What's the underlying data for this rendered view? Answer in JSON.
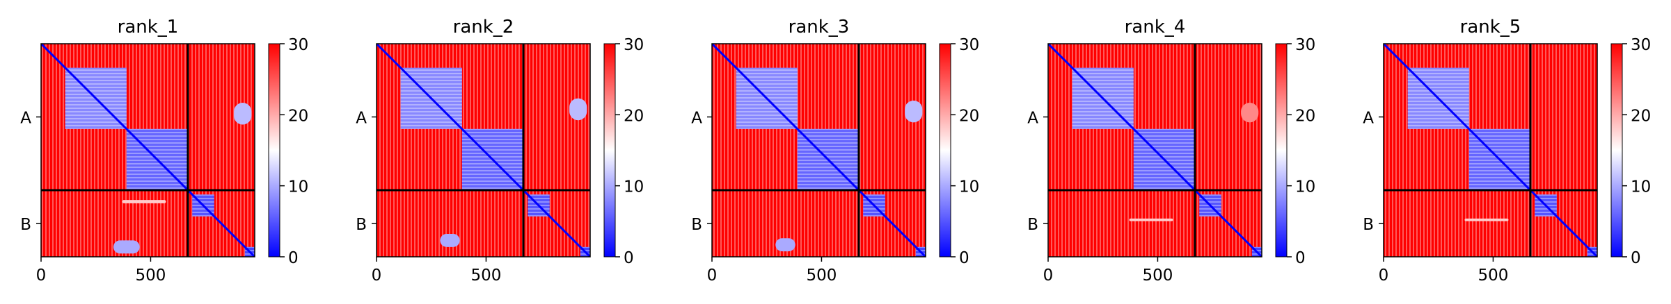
{
  "chart_data": {
    "type": "heatmap",
    "colormap": {
      "name": "bwr",
      "low": "#0000ff",
      "mid": "#ffffff",
      "high": "#ff0000"
    },
    "colorbar": {
      "range": [
        0,
        30
      ],
      "ticks": [
        "0",
        "10",
        "20",
        "30"
      ]
    },
    "x_ticks": [
      0,
      500
    ],
    "x_tick_labels": [
      "0",
      "500"
    ],
    "xlim": [
      0,
      975
    ],
    "chains": [
      {
        "label": "A",
        "start": 0,
        "end": 670
      },
      {
        "label": "B",
        "start": 670,
        "end": 975
      }
    ],
    "grid": false,
    "panels": [
      {
        "title": "rank_1",
        "domains": [
          {
            "start": 110,
            "end": 390,
            "value": 8
          },
          {
            "start": 390,
            "end": 670,
            "value": 6
          },
          {
            "start": 690,
            "end": 790,
            "value": 5
          },
          {
            "start": 930,
            "end": 975,
            "value": 4
          }
        ],
        "contacts": [
          {
            "x": [
              880,
              960
            ],
            "y": [
              270,
              370
            ],
            "value": 11
          },
          {
            "x": [
              330,
              450
            ],
            "y": [
              900,
              960
            ],
            "value": 10
          },
          {
            "x": [
              370,
              570
            ],
            "y": [
              715,
              730
            ],
            "value": 18
          }
        ]
      },
      {
        "title": "rank_2",
        "domains": [
          {
            "start": 110,
            "end": 390,
            "value": 8
          },
          {
            "start": 390,
            "end": 670,
            "value": 6
          },
          {
            "start": 690,
            "end": 790,
            "value": 5
          },
          {
            "start": 930,
            "end": 975,
            "value": 4
          }
        ],
        "contacts": [
          {
            "x": [
              880,
              960
            ],
            "y": [
              250,
              350
            ],
            "value": 11
          },
          {
            "x": [
              290,
              380
            ],
            "y": [
              870,
              930
            ],
            "value": 10
          }
        ]
      },
      {
        "title": "rank_3",
        "domains": [
          {
            "start": 110,
            "end": 390,
            "value": 8
          },
          {
            "start": 390,
            "end": 670,
            "value": 6
          },
          {
            "start": 690,
            "end": 790,
            "value": 5
          },
          {
            "start": 930,
            "end": 975,
            "value": 4
          }
        ],
        "contacts": [
          {
            "x": [
              880,
              960
            ],
            "y": [
              260,
              360
            ],
            "value": 11
          },
          {
            "x": [
              290,
              380
            ],
            "y": [
              890,
              950
            ],
            "value": 10
          }
        ]
      },
      {
        "title": "rank_4",
        "domains": [
          {
            "start": 110,
            "end": 390,
            "value": 8
          },
          {
            "start": 390,
            "end": 670,
            "value": 6
          },
          {
            "start": 690,
            "end": 790,
            "value": 5
          },
          {
            "start": 930,
            "end": 975,
            "value": 4
          }
        ],
        "contacts": [
          {
            "x": [
              370,
              570
            ],
            "y": [
              800,
              812
            ],
            "value": 18
          },
          {
            "x": [
              880,
              960
            ],
            "y": [
              270,
              360
            ],
            "value": 22
          }
        ]
      },
      {
        "title": "rank_5",
        "domains": [
          {
            "start": 110,
            "end": 390,
            "value": 8
          },
          {
            "start": 390,
            "end": 670,
            "value": 6
          },
          {
            "start": 690,
            "end": 790,
            "value": 5
          },
          {
            "start": 930,
            "end": 975,
            "value": 4
          }
        ],
        "contacts": [
          {
            "x": [
              370,
              570
            ],
            "y": [
              800,
              812
            ],
            "value": 18
          }
        ]
      }
    ]
  }
}
